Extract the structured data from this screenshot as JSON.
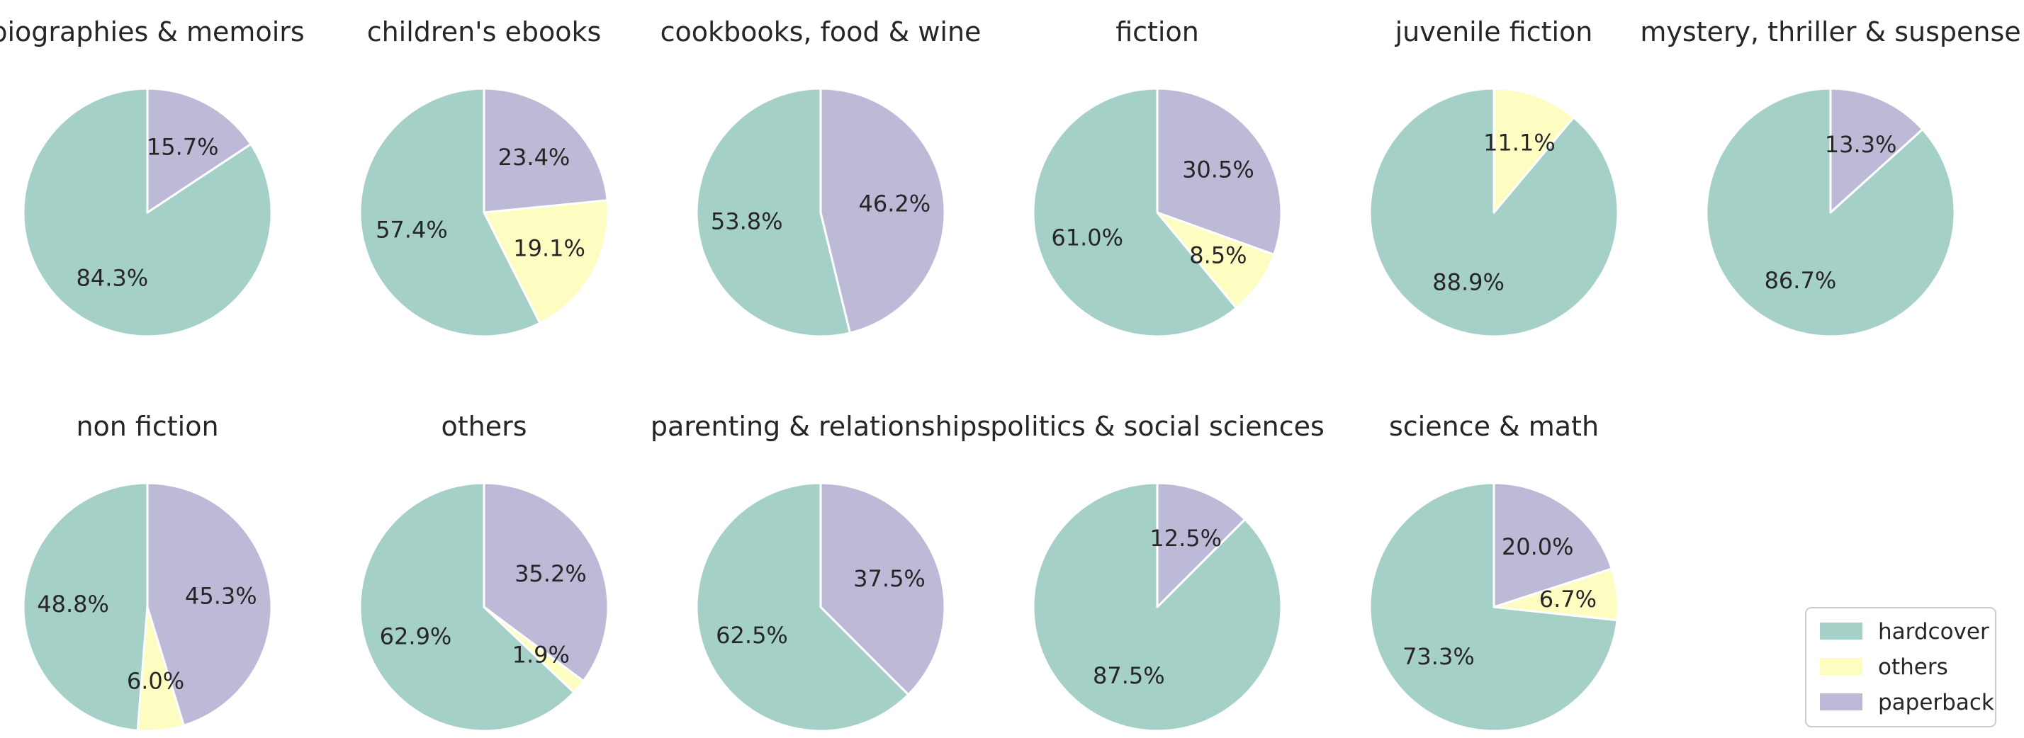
{
  "chart_data": {
    "type": "pie",
    "colors": {
      "hardcover": "#a4d0c7",
      "others": "#fdfdc2",
      "paperback": "#bdbad8"
    },
    "slice_order": [
      "hardcover",
      "others",
      "paperback"
    ],
    "start_angle_deg": 90,
    "direction": "counterclockwise",
    "legend": {
      "position": "bottom-right",
      "entries": [
        "hardcover",
        "others",
        "paperback"
      ]
    },
    "charts": [
      {
        "title": "biographies & memoirs",
        "labels": [
          "hardcover",
          "paperback"
        ],
        "values": [
          84.3,
          15.7
        ],
        "pct_labels": [
          "84.3%",
          "15.7%"
        ]
      },
      {
        "title": "children's ebooks",
        "labels": [
          "hardcover",
          "others",
          "paperback"
        ],
        "values": [
          57.4,
          19.1,
          23.4
        ],
        "pct_labels": [
          "57.4%",
          "19.1%",
          "23.4%"
        ]
      },
      {
        "title": "cookbooks, food & wine",
        "labels": [
          "hardcover",
          "paperback"
        ],
        "values": [
          53.8,
          46.2
        ],
        "pct_labels": [
          "53.8%",
          "46.2%"
        ]
      },
      {
        "title": "fiction",
        "labels": [
          "hardcover",
          "others",
          "paperback"
        ],
        "values": [
          61.0,
          8.5,
          30.5
        ],
        "pct_labels": [
          "61.0%",
          "8.5%",
          "30.5%"
        ]
      },
      {
        "title": "juvenile fiction",
        "labels": [
          "hardcover",
          "others"
        ],
        "values": [
          88.9,
          11.1
        ],
        "pct_labels": [
          "88.9%",
          "11.1%"
        ]
      },
      {
        "title": "mystery, thriller & suspense",
        "labels": [
          "hardcover",
          "paperback"
        ],
        "values": [
          86.7,
          13.3
        ],
        "pct_labels": [
          "86.7%",
          "13.3%"
        ]
      },
      {
        "title": "non fiction",
        "labels": [
          "hardcover",
          "others",
          "paperback"
        ],
        "values": [
          48.8,
          6.0,
          45.3
        ],
        "pct_labels": [
          "48.8%",
          "6.0%",
          "45.3%"
        ]
      },
      {
        "title": "others",
        "labels": [
          "hardcover",
          "others",
          "paperback"
        ],
        "values": [
          62.9,
          1.9,
          35.2
        ],
        "pct_labels": [
          "62.9%",
          "1.9%",
          "35.2%"
        ]
      },
      {
        "title": "parenting & relationships",
        "labels": [
          "hardcover",
          "paperback"
        ],
        "values": [
          62.5,
          37.5
        ],
        "pct_labels": [
          "62.5%",
          "37.5%"
        ]
      },
      {
        "title": "politics & social sciences",
        "labels": [
          "hardcover",
          "paperback"
        ],
        "values": [
          87.5,
          12.5
        ],
        "pct_labels": [
          "87.5%",
          "12.5%"
        ]
      },
      {
        "title": "science & math",
        "labels": [
          "hardcover",
          "others",
          "paperback"
        ],
        "values": [
          73.3,
          6.7,
          20.0
        ],
        "pct_labels": [
          "73.3%",
          "6.7%",
          "20.0%"
        ]
      }
    ]
  }
}
